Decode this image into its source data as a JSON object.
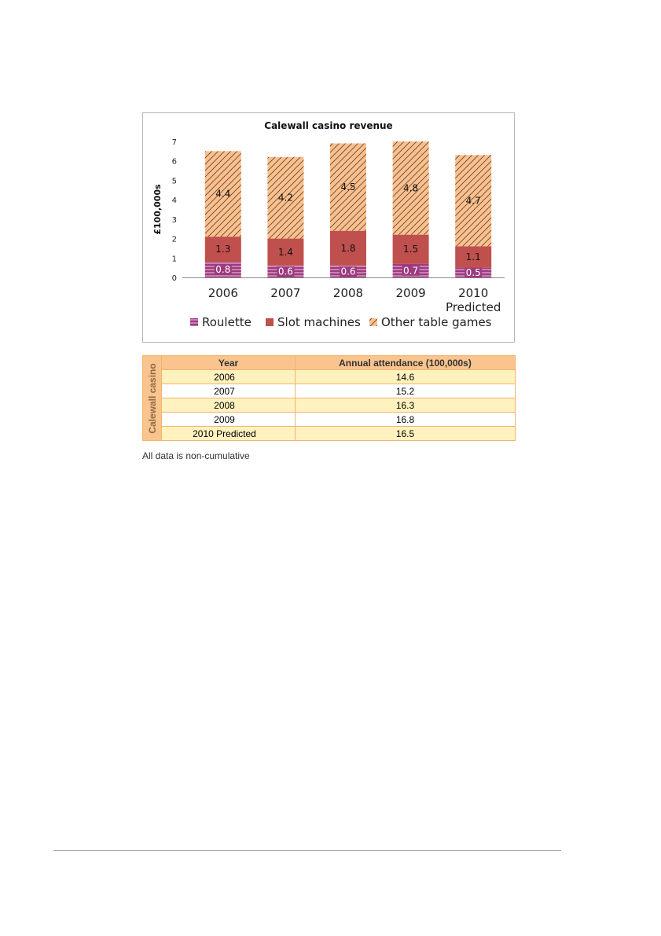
{
  "chart_data": {
    "type": "bar",
    "stacked": true,
    "title": "Calewall casino revenue",
    "ylabel": "£100,000s",
    "ylim": [
      0,
      7
    ],
    "yticks": [
      "0",
      "1",
      "2",
      "3",
      "4",
      "5",
      "6",
      "7"
    ],
    "categories": [
      "2006",
      "2007",
      "2008",
      "2009",
      "2010 Predicted"
    ],
    "series": [
      {
        "name": "Roulette",
        "values": [
          0.8,
          0.6,
          0.6,
          0.7,
          0.5
        ],
        "labels": [
          "0.8",
          "0.6",
          "0.6",
          "0.7",
          "0.5"
        ],
        "color": "#9e3a7f",
        "pattern": "horizontal-lines"
      },
      {
        "name": "Slot machines",
        "values": [
          1.3,
          1.4,
          1.8,
          1.5,
          1.1
        ],
        "labels": [
          "1.3",
          "1.4",
          "1.8",
          "1.5",
          "1.1"
        ],
        "color": "#c0504d",
        "pattern": "solid"
      },
      {
        "name": "Other table games",
        "values": [
          4.4,
          4.2,
          4.5,
          4.8,
          4.7
        ],
        "labels": [
          "4.4",
          "4.2",
          "4.5",
          "4.8",
          "4.7"
        ],
        "color": "#fac090",
        "pattern": "diagonal-hatch"
      }
    ],
    "legend_position": "bottom",
    "grid": false
  },
  "table": {
    "side_label": "Calewall casino",
    "headers": [
      "Year",
      "Annual attendance (100,000s)"
    ],
    "rows": [
      [
        "2006",
        "14.6"
      ],
      [
        "2007",
        "15.2"
      ],
      [
        "2008",
        "16.3"
      ],
      [
        "2009",
        "16.8"
      ],
      [
        "2010 Predicted",
        "16.5"
      ]
    ],
    "header_color": "#f9c48d",
    "band_color": "#fff2bf"
  },
  "note": "All data is non-cumulative"
}
